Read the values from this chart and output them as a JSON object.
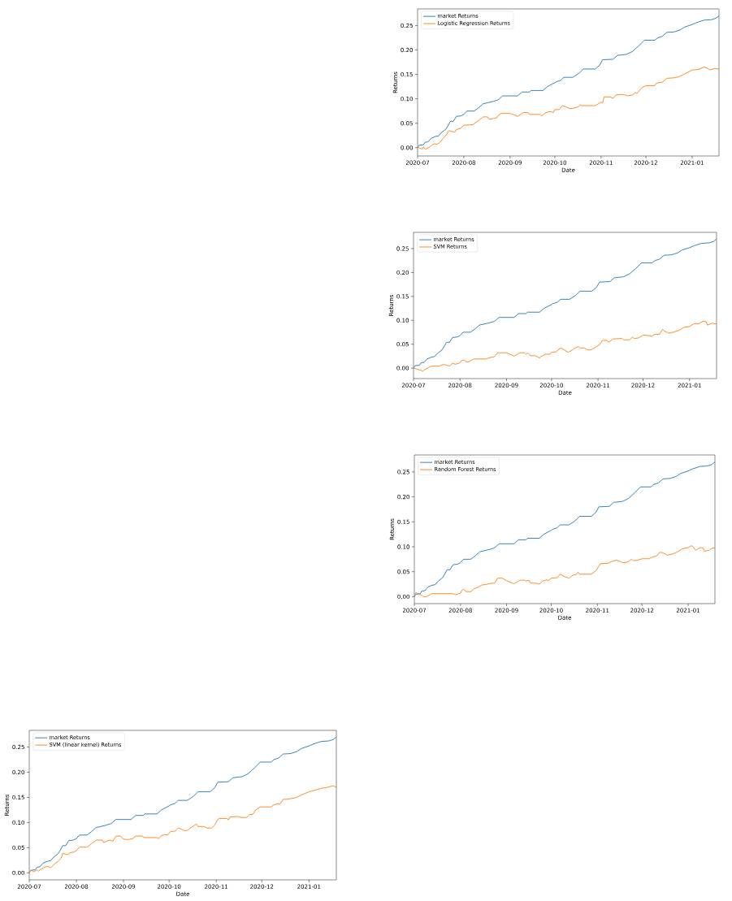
{
  "chart_data": [
    {
      "type": "line",
      "xlabel": "Date",
      "ylabel": "Returns",
      "xlim": [
        "2020-07-01",
        "2021-01-19"
      ],
      "ylim": [
        -0.014,
        0.283
      ],
      "xticks": [
        "2020-07",
        "2020-08",
        "2020-09",
        "2020-10",
        "2020-11",
        "2020-12",
        "2021-01"
      ],
      "yticks": [
        {
          "value": 0,
          "label": "0.00"
        },
        0.05,
        {
          "value": 0.1,
          "label": "0.10"
        },
        0.15,
        {
          "value": 0.2,
          "label": "0.20"
        },
        0.25
      ],
      "legend": "top left",
      "series": [
        {
          "name": "market Returns",
          "color": "#1f77b4",
          "x": [
            "2020-07-01",
            "2020-07-02",
            "2020-07-05",
            "2020-07-06",
            "2020-07-08",
            "2020-07-10",
            "2020-07-13",
            "2020-07-15",
            "2020-07-17",
            "2020-07-20",
            "2020-07-21",
            "2020-07-23",
            "2020-07-25",
            "2020-07-27",
            "2020-07-30",
            "2020-08-01",
            "2020-08-03",
            "2020-08-08",
            "2020-08-11",
            "2020-08-14",
            "2020-08-17",
            "2020-08-21",
            "2020-08-24",
            "2020-08-27",
            "2020-09-06",
            "2020-09-09",
            "2020-09-14",
            "2020-09-15",
            "2020-09-23",
            "2020-09-26",
            "2020-10-01",
            "2020-10-02",
            "2020-10-05",
            "2020-10-07",
            "2020-10-13",
            "2020-10-17",
            "2020-10-20",
            "2020-10-28",
            "2020-10-31",
            "2020-11-02",
            "2020-11-09",
            "2020-11-12",
            "2020-11-18",
            "2020-11-22",
            "2020-11-26",
            "2020-11-30",
            "2020-12-07",
            "2020-12-09",
            "2020-12-12",
            "2020-12-15",
            "2020-12-20",
            "2020-12-24",
            "2020-12-27",
            "2021-01-01",
            "2021-01-04",
            "2021-01-09",
            "2021-01-14",
            "2021-01-17",
            "2021-01-19"
          ],
          "values": [
            0,
            0.005,
            0.006,
            0.011,
            0.012,
            0.019,
            0.023,
            0.024,
            0.031,
            0.038,
            0.043,
            0.054,
            0.054,
            0.064,
            0.065,
            0.068,
            0.075,
            0.075,
            0.082,
            0.09,
            0.092,
            0.095,
            0.098,
            0.106,
            0.106,
            0.114,
            0.114,
            0.117,
            0.117,
            0.125,
            0.133,
            0.135,
            0.138,
            0.144,
            0.144,
            0.152,
            0.161,
            0.161,
            0.169,
            0.18,
            0.181,
            0.189,
            0.191,
            0.197,
            0.208,
            0.22,
            0.22,
            0.225,
            0.228,
            0.236,
            0.237,
            0.241,
            0.247,
            0.252,
            0.256,
            0.261,
            0.262,
            0.265,
            0.27
          ]
        },
        {
          "name": "SVM (linear kernel) Returns",
          "color": "#ff7f0e",
          "x": [
            "2020-07-01",
            "2020-07-02",
            "2020-07-03",
            "2020-07-04",
            "2020-07-06",
            "2020-07-07",
            "2020-07-08",
            "2020-07-11",
            "2020-07-13",
            "2020-07-15",
            "2020-07-17",
            "2020-07-20",
            "2020-07-22",
            "2020-07-23",
            "2020-07-25",
            "2020-07-26",
            "2020-07-28",
            "2020-07-30",
            "2020-08-01",
            "2020-08-03",
            "2020-08-08",
            "2020-08-11",
            "2020-08-14",
            "2020-08-18",
            "2020-08-19",
            "2020-08-21",
            "2020-08-23",
            "2020-08-25",
            "2020-08-27",
            "2020-08-30",
            "2020-09-01",
            "2020-09-04",
            "2020-09-07",
            "2020-09-09",
            "2020-09-13",
            "2020-09-15",
            "2020-09-23",
            "2020-09-24",
            "2020-09-26",
            "2020-09-28",
            "2020-09-30",
            "2020-10-02",
            "2020-10-05",
            "2020-10-07",
            "2020-10-09",
            "2020-10-11",
            "2020-10-13",
            "2020-10-15",
            "2020-10-18",
            "2020-10-19",
            "2020-10-20",
            "2020-10-24",
            "2020-10-26",
            "2020-10-29",
            "2020-10-31",
            "2020-11-02",
            "2020-11-03",
            "2020-11-08",
            "2020-11-09",
            "2020-11-10",
            "2020-11-15",
            "2020-11-18",
            "2020-11-21",
            "2020-11-23",
            "2020-11-25",
            "2020-11-27",
            "2020-11-30",
            "2020-12-07",
            "2020-12-09",
            "2020-12-11",
            "2020-12-13",
            "2020-12-15",
            "2020-12-17",
            "2020-12-19",
            "2020-12-23",
            "2020-12-26",
            "2020-12-28",
            "2021-01-01",
            "2021-01-05",
            "2021-01-09",
            "2021-01-12",
            "2021-01-17",
            "2021-01-19"
          ],
          "values": [
            0,
            0.005,
            0.004,
            0.002,
            0.006,
            0.003,
            0.006,
            0.011,
            0.013,
            0.01,
            0.016,
            0.023,
            0.029,
            0.039,
            0.037,
            0.036,
            0.04,
            0.041,
            0.044,
            0.051,
            0.051,
            0.058,
            0.065,
            0.065,
            0.06,
            0.063,
            0.065,
            0.063,
            0.073,
            0.073,
            0.067,
            0.066,
            0.068,
            0.073,
            0.073,
            0.07,
            0.07,
            0.068,
            0.074,
            0.076,
            0.075,
            0.082,
            0.083,
            0.089,
            0.087,
            0.084,
            0.084,
            0.089,
            0.095,
            0.097,
            0.092,
            0.092,
            0.089,
            0.089,
            0.095,
            0.106,
            0.108,
            0.108,
            0.105,
            0.111,
            0.112,
            0.11,
            0.11,
            0.116,
            0.116,
            0.125,
            0.131,
            0.131,
            0.135,
            0.137,
            0.137,
            0.146,
            0.146,
            0.147,
            0.149,
            0.153,
            0.156,
            0.161,
            0.164,
            0.168,
            0.169,
            0.173,
            0.17
          ]
        }
      ]
    },
    {
      "type": "line",
      "xlabel": "Date",
      "ylabel": "Returns",
      "xlim": [
        "2020-07-01",
        "2021-01-19"
      ],
      "ylim": [
        -0.017,
        0.284
      ],
      "xticks": [
        "2020-07",
        "2020-08",
        "2020-09",
        "2020-10",
        "2020-11",
        "2020-12",
        "2021-01"
      ],
      "yticks": [
        {
          "value": 0,
          "label": "0.00"
        },
        0.05,
        {
          "value": 0.1,
          "label": "0.10"
        },
        0.15,
        {
          "value": 0.2,
          "label": "0.20"
        },
        0.25
      ],
      "legend": "top left",
      "series": [
        {
          "name": "market Returns",
          "color": "#1f77b4",
          "x": [
            "2020-07-01",
            "2020-07-02",
            "2020-07-05",
            "2020-07-06",
            "2020-07-08",
            "2020-07-10",
            "2020-07-13",
            "2020-07-15",
            "2020-07-17",
            "2020-07-20",
            "2020-07-21",
            "2020-07-23",
            "2020-07-25",
            "2020-07-27",
            "2020-07-30",
            "2020-08-01",
            "2020-08-03",
            "2020-08-08",
            "2020-08-11",
            "2020-08-14",
            "2020-08-17",
            "2020-08-21",
            "2020-08-24",
            "2020-08-27",
            "2020-09-06",
            "2020-09-09",
            "2020-09-14",
            "2020-09-15",
            "2020-09-23",
            "2020-09-26",
            "2020-10-01",
            "2020-10-02",
            "2020-10-05",
            "2020-10-07",
            "2020-10-13",
            "2020-10-17",
            "2020-10-20",
            "2020-10-28",
            "2020-10-31",
            "2020-11-02",
            "2020-11-09",
            "2020-11-12",
            "2020-11-18",
            "2020-11-22",
            "2020-11-26",
            "2020-11-30",
            "2020-12-07",
            "2020-12-09",
            "2020-12-12",
            "2020-12-15",
            "2020-12-20",
            "2020-12-24",
            "2020-12-27",
            "2021-01-01",
            "2021-01-04",
            "2021-01-09",
            "2021-01-14",
            "2021-01-17",
            "2021-01-19"
          ],
          "values": [
            0,
            0.005,
            0.006,
            0.011,
            0.012,
            0.019,
            0.023,
            0.024,
            0.031,
            0.038,
            0.043,
            0.054,
            0.054,
            0.064,
            0.065,
            0.068,
            0.075,
            0.075,
            0.082,
            0.09,
            0.092,
            0.095,
            0.098,
            0.106,
            0.106,
            0.114,
            0.114,
            0.117,
            0.117,
            0.125,
            0.133,
            0.135,
            0.138,
            0.144,
            0.144,
            0.152,
            0.161,
            0.161,
            0.169,
            0.18,
            0.181,
            0.189,
            0.191,
            0.197,
            0.208,
            0.22,
            0.22,
            0.225,
            0.228,
            0.236,
            0.237,
            0.241,
            0.247,
            0.252,
            0.256,
            0.261,
            0.262,
            0.265,
            0.27
          ]
        },
        {
          "name": "Logistic Regression Returns",
          "color": "#ff7f0e",
          "x": [
            "2020-07-01",
            "2020-07-02",
            "2020-07-04",
            "2020-07-05",
            "2020-07-06",
            "2020-07-08",
            "2020-07-10",
            "2020-07-12",
            "2020-07-14",
            "2020-07-16",
            "2020-07-18",
            "2020-07-20",
            "2020-07-22",
            "2020-07-24",
            "2020-07-26",
            "2020-07-27",
            "2020-07-30",
            "2020-08-01",
            "2020-08-07",
            "2020-08-11",
            "2020-08-14",
            "2020-08-17",
            "2020-08-18",
            "2020-08-21",
            "2020-08-23",
            "2020-08-24",
            "2020-08-26",
            "2020-09-01",
            "2020-09-04",
            "2020-09-06",
            "2020-09-08",
            "2020-09-10",
            "2020-09-13",
            "2020-09-14",
            "2020-09-21",
            "2020-09-22",
            "2020-09-25",
            "2020-09-28",
            "2020-09-30",
            "2020-10-01",
            "2020-10-04",
            "2020-10-06",
            "2020-10-08",
            "2020-10-11",
            "2020-10-14",
            "2020-10-17",
            "2020-10-18",
            "2020-10-19",
            "2020-10-28",
            "2020-11-01",
            "2020-11-02",
            "2020-11-03",
            "2020-11-07",
            "2020-11-09",
            "2020-11-11",
            "2020-11-15",
            "2020-11-17",
            "2020-11-19",
            "2020-11-22",
            "2020-11-24",
            "2020-11-25",
            "2020-11-28",
            "2020-12-01",
            "2020-12-07",
            "2020-12-08",
            "2020-12-12",
            "2020-12-15",
            "2020-12-20",
            "2020-12-23",
            "2020-12-27",
            "2021-01-01",
            "2021-01-05",
            "2021-01-09",
            "2021-01-11",
            "2021-01-13",
            "2021-01-16",
            "2021-01-19"
          ],
          "values": [
            0,
            0,
            -0.003,
            0.001,
            -0.003,
            -0.001,
            0.004,
            0.008,
            0.007,
            0.011,
            0.019,
            0.025,
            0.035,
            0.033,
            0.032,
            0.037,
            0.04,
            0.046,
            0.047,
            0.056,
            0.063,
            0.063,
            0.058,
            0.06,
            0.061,
            0.066,
            0.07,
            0.07,
            0.067,
            0.064,
            0.068,
            0.072,
            0.072,
            0.068,
            0.068,
            0.065,
            0.072,
            0.074,
            0.072,
            0.078,
            0.078,
            0.086,
            0.084,
            0.08,
            0.081,
            0.084,
            0.088,
            0.086,
            0.086,
            0.093,
            0.092,
            0.104,
            0.104,
            0.101,
            0.108,
            0.109,
            0.108,
            0.106,
            0.108,
            0.113,
            0.111,
            0.122,
            0.127,
            0.127,
            0.132,
            0.134,
            0.142,
            0.143,
            0.145,
            0.151,
            0.159,
            0.16,
            0.165,
            0.163,
            0.159,
            0.162,
            0.161
          ]
        }
      ]
    },
    {
      "type": "line",
      "xlabel": "Date",
      "ylabel": "Returns",
      "xlim": [
        "2020-07-01",
        "2021-01-19"
      ],
      "ylim": [
        -0.022,
        0.284
      ],
      "xticks": [
        "2020-07",
        "2020-08",
        "2020-09",
        "2020-10",
        "2020-11",
        "2020-12",
        "2021-01"
      ],
      "yticks": [
        {
          "value": 0,
          "label": "0.00"
        },
        0.05,
        {
          "value": 0.1,
          "label": "0.10"
        },
        0.15,
        {
          "value": 0.2,
          "label": "0.20"
        },
        0.25
      ],
      "legend": "top left",
      "series": [
        {
          "name": "market Returns",
          "color": "#1f77b4",
          "x": [
            "2020-07-01",
            "2020-07-02",
            "2020-07-05",
            "2020-07-06",
            "2020-07-08",
            "2020-07-10",
            "2020-07-13",
            "2020-07-15",
            "2020-07-17",
            "2020-07-20",
            "2020-07-21",
            "2020-07-23",
            "2020-07-25",
            "2020-07-27",
            "2020-07-30",
            "2020-08-01",
            "2020-08-03",
            "2020-08-08",
            "2020-08-11",
            "2020-08-14",
            "2020-08-17",
            "2020-08-21",
            "2020-08-24",
            "2020-08-27",
            "2020-09-06",
            "2020-09-09",
            "2020-09-14",
            "2020-09-15",
            "2020-09-23",
            "2020-09-26",
            "2020-10-01",
            "2020-10-02",
            "2020-10-05",
            "2020-10-07",
            "2020-10-13",
            "2020-10-17",
            "2020-10-20",
            "2020-10-28",
            "2020-10-31",
            "2020-11-02",
            "2020-11-09",
            "2020-11-12",
            "2020-11-18",
            "2020-11-22",
            "2020-11-26",
            "2020-11-30",
            "2020-12-07",
            "2020-12-09",
            "2020-12-12",
            "2020-12-15",
            "2020-12-20",
            "2020-12-24",
            "2020-12-27",
            "2021-01-01",
            "2021-01-04",
            "2021-01-09",
            "2021-01-14",
            "2021-01-17",
            "2021-01-19"
          ],
          "values": [
            0,
            0.005,
            0.006,
            0.011,
            0.012,
            0.019,
            0.023,
            0.024,
            0.031,
            0.038,
            0.043,
            0.054,
            0.054,
            0.064,
            0.065,
            0.068,
            0.075,
            0.075,
            0.082,
            0.09,
            0.092,
            0.095,
            0.098,
            0.106,
            0.106,
            0.114,
            0.114,
            0.117,
            0.117,
            0.125,
            0.133,
            0.135,
            0.138,
            0.144,
            0.144,
            0.152,
            0.161,
            0.161,
            0.169,
            0.18,
            0.181,
            0.189,
            0.191,
            0.197,
            0.208,
            0.22,
            0.22,
            0.225,
            0.228,
            0.236,
            0.237,
            0.241,
            0.247,
            0.252,
            0.256,
            0.261,
            0.262,
            0.265,
            0.27
          ]
        },
        {
          "name": "SVM Returns",
          "color": "#ff7f0e",
          "x": [
            "2020-07-01",
            "2020-07-03",
            "2020-07-05",
            "2020-07-06",
            "2020-07-07",
            "2020-07-08",
            "2020-07-11",
            "2020-07-13",
            "2020-07-18",
            "2020-07-20",
            "2020-07-22",
            "2020-07-25",
            "2020-07-27",
            "2020-07-29",
            "2020-08-01",
            "2020-08-02",
            "2020-08-04",
            "2020-08-05",
            "2020-08-07",
            "2020-08-10",
            "2020-08-18",
            "2020-08-21",
            "2020-08-24",
            "2020-08-26",
            "2020-09-01",
            "2020-09-03",
            "2020-09-06",
            "2020-09-10",
            "2020-09-13",
            "2020-09-14",
            "2020-09-15",
            "2020-09-17",
            "2020-09-20",
            "2020-09-22",
            "2020-09-23",
            "2020-09-24",
            "2020-09-27",
            "2020-09-30",
            "2020-10-01",
            "2020-10-04",
            "2020-10-07",
            "2020-10-09",
            "2020-10-12",
            "2020-10-15",
            "2020-10-17",
            "2020-10-19",
            "2020-10-20",
            "2020-10-23",
            "2020-10-25",
            "2020-10-27",
            "2020-10-30",
            "2020-11-02",
            "2020-11-04",
            "2020-11-07",
            "2020-11-08",
            "2020-11-11",
            "2020-11-17",
            "2020-11-18",
            "2020-11-22",
            "2020-11-24",
            "2020-11-25",
            "2020-11-28",
            "2020-12-01",
            "2020-12-05",
            "2020-12-07",
            "2020-12-08",
            "2020-12-12",
            "2020-12-14",
            "2020-12-15",
            "2020-12-18",
            "2020-12-21",
            "2020-12-25",
            "2020-12-28",
            "2021-01-01",
            "2021-01-04",
            "2021-01-07",
            "2021-01-10",
            "2021-01-12",
            "2021-01-13",
            "2021-01-16",
            "2021-01-19"
          ],
          "values": [
            0,
            -0.002,
            -0.004,
            -0.004,
            -0.007,
            -0.004,
            0.001,
            0.004,
            0.004,
            0.007,
            0.007,
            0.004,
            0.01,
            0.008,
            0.011,
            0.016,
            0.017,
            0.013,
            0.013,
            0.019,
            0.019,
            0.022,
            0.024,
            0.032,
            0.032,
            0.029,
            0.025,
            0.032,
            0.032,
            0.029,
            0.032,
            0.026,
            0.026,
            0.023,
            0.021,
            0.024,
            0.029,
            0.029,
            0.033,
            0.034,
            0.042,
            0.039,
            0.033,
            0.038,
            0.043,
            0.045,
            0.042,
            0.042,
            0.038,
            0.038,
            0.043,
            0.049,
            0.058,
            0.058,
            0.054,
            0.061,
            0.062,
            0.059,
            0.059,
            0.065,
            0.062,
            0.063,
            0.069,
            0.068,
            0.066,
            0.07,
            0.071,
            0.081,
            0.078,
            0.073,
            0.075,
            0.079,
            0.085,
            0.087,
            0.093,
            0.093,
            0.098,
            0.097,
            0.09,
            0.094,
            0.092
          ]
        }
      ]
    },
    {
      "type": "line",
      "xlabel": "Date",
      "ylabel": "Returns",
      "xlim": [
        "2020-07-01",
        "2021-01-19"
      ],
      "ylim": [
        -0.014,
        0.284
      ],
      "xticks": [
        "2020-07",
        "2020-08",
        "2020-09",
        "2020-10",
        "2020-11",
        "2020-12",
        "2021-01"
      ],
      "yticks": [
        {
          "value": 0,
          "label": "0.00"
        },
        0.05,
        {
          "value": 0.1,
          "label": "0.10"
        },
        0.15,
        {
          "value": 0.2,
          "label": "0.20"
        },
        0.25
      ],
      "legend": "top left",
      "series": [
        {
          "name": "market Returns",
          "color": "#1f77b4",
          "x": [
            "2020-07-01",
            "2020-07-02",
            "2020-07-05",
            "2020-07-06",
            "2020-07-08",
            "2020-07-10",
            "2020-07-13",
            "2020-07-15",
            "2020-07-17",
            "2020-07-20",
            "2020-07-21",
            "2020-07-23",
            "2020-07-25",
            "2020-07-27",
            "2020-07-30",
            "2020-08-01",
            "2020-08-03",
            "2020-08-08",
            "2020-08-11",
            "2020-08-14",
            "2020-08-17",
            "2020-08-21",
            "2020-08-24",
            "2020-08-27",
            "2020-09-06",
            "2020-09-09",
            "2020-09-14",
            "2020-09-15",
            "2020-09-23",
            "2020-09-26",
            "2020-10-01",
            "2020-10-02",
            "2020-10-05",
            "2020-10-07",
            "2020-10-13",
            "2020-10-17",
            "2020-10-20",
            "2020-10-28",
            "2020-10-31",
            "2020-11-02",
            "2020-11-09",
            "2020-11-12",
            "2020-11-18",
            "2020-11-22",
            "2020-11-26",
            "2020-11-30",
            "2020-12-07",
            "2020-12-09",
            "2020-12-12",
            "2020-12-15",
            "2020-12-20",
            "2020-12-24",
            "2020-12-27",
            "2021-01-01",
            "2021-01-04",
            "2021-01-09",
            "2021-01-14",
            "2021-01-17",
            "2021-01-19"
          ],
          "values": [
            0,
            0.005,
            0.006,
            0.011,
            0.012,
            0.019,
            0.023,
            0.024,
            0.031,
            0.038,
            0.043,
            0.054,
            0.054,
            0.064,
            0.065,
            0.068,
            0.075,
            0.075,
            0.082,
            0.09,
            0.092,
            0.095,
            0.098,
            0.106,
            0.106,
            0.114,
            0.114,
            0.117,
            0.117,
            0.125,
            0.133,
            0.135,
            0.138,
            0.144,
            0.144,
            0.152,
            0.161,
            0.161,
            0.169,
            0.18,
            0.181,
            0.189,
            0.191,
            0.197,
            0.208,
            0.22,
            0.22,
            0.225,
            0.228,
            0.236,
            0.237,
            0.241,
            0.247,
            0.252,
            0.256,
            0.261,
            0.262,
            0.265,
            0.27
          ]
        },
        {
          "name": "Random Forest Returns",
          "color": "#ff7f0e",
          "x": [
            "2020-07-01",
            "2020-07-02",
            "2020-07-04",
            "2020-07-06",
            "2020-07-07",
            "2020-07-09",
            "2020-07-11",
            "2020-07-13",
            "2020-07-27",
            "2020-07-29",
            "2020-08-01",
            "2020-08-02",
            "2020-08-03",
            "2020-08-05",
            "2020-08-08",
            "2020-08-10",
            "2020-08-13",
            "2020-08-15",
            "2020-08-19",
            "2020-08-22",
            "2020-08-24",
            "2020-08-26",
            "2020-08-29",
            "2020-09-01",
            "2020-09-04",
            "2020-09-06",
            "2020-09-10",
            "2020-09-13",
            "2020-09-14",
            "2020-09-16",
            "2020-09-17",
            "2020-09-21",
            "2020-09-23",
            "2020-09-25",
            "2020-09-28",
            "2020-09-29",
            "2020-10-01",
            "2020-10-05",
            "2020-10-07",
            "2020-10-10",
            "2020-10-13",
            "2020-10-15",
            "2020-10-18",
            "2020-10-19",
            "2020-10-20",
            "2020-10-28",
            "2020-10-31",
            "2020-11-03",
            "2020-11-08",
            "2020-11-11",
            "2020-11-14",
            "2020-11-16",
            "2020-11-18",
            "2020-11-21",
            "2020-11-23",
            "2020-11-24",
            "2020-11-25",
            "2020-11-28",
            "2020-12-01",
            "2020-12-06",
            "2020-12-07",
            "2020-12-08",
            "2020-12-11",
            "2020-12-13",
            "2020-12-15",
            "2020-12-18",
            "2020-12-22",
            "2020-12-25",
            "2020-12-28",
            "2021-01-01",
            "2021-01-03",
            "2021-01-04",
            "2021-01-06",
            "2021-01-09",
            "2021-01-11",
            "2021-01-12",
            "2021-01-15",
            "2021-01-17",
            "2021-01-19"
          ],
          "values": [
            0.003,
            0.008,
            0.005,
            0.003,
            0,
            0,
            0.003,
            0.006,
            0.006,
            0.004,
            0.007,
            0.013,
            0.015,
            0.01,
            0.01,
            0.016,
            0.019,
            0.023,
            0.025,
            0.027,
            0.027,
            0.037,
            0.037,
            0.032,
            0.028,
            0.026,
            0.033,
            0.033,
            0.031,
            0.033,
            0.027,
            0.027,
            0.025,
            0.031,
            0.034,
            0.032,
            0.037,
            0.038,
            0.045,
            0.04,
            0.037,
            0.042,
            0.045,
            0.049,
            0.045,
            0.045,
            0.052,
            0.066,
            0.067,
            0.071,
            0.073,
            0.071,
            0.068,
            0.069,
            0.073,
            0.075,
            0.072,
            0.073,
            0.076,
            0.076,
            0.078,
            0.079,
            0.082,
            0.089,
            0.088,
            0.083,
            0.086,
            0.09,
            0.096,
            0.098,
            0.102,
            0.101,
            0.093,
            0.098,
            0.098,
            0.091,
            0.093,
            0.097,
            0.098
          ]
        }
      ]
    }
  ]
}
